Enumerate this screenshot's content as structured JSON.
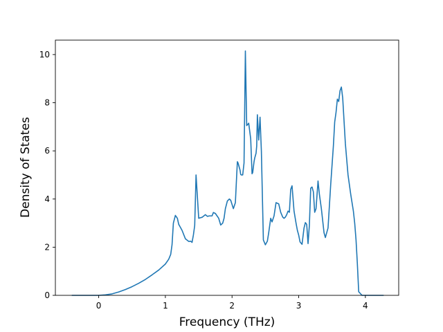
{
  "chart_data": {
    "type": "line",
    "title": "",
    "xlabel": "Frequency (THz)",
    "ylabel": "Density of States",
    "xlim": [
      -0.65,
      4.5
    ],
    "ylim": [
      0,
      10.6
    ],
    "x_ticks": [
      0,
      1,
      2,
      3,
      4
    ],
    "y_ticks": [
      0,
      2,
      4,
      6,
      8,
      10
    ],
    "grid": false,
    "legend": "none",
    "series": [
      {
        "color": "#1f77b4",
        "x": [
          -0.4,
          -0.2,
          0.0,
          0.1,
          0.2,
          0.3,
          0.4,
          0.5,
          0.6,
          0.7,
          0.8,
          0.9,
          1.0,
          1.05,
          1.08,
          1.1,
          1.12,
          1.15,
          1.18,
          1.2,
          1.22,
          1.25,
          1.3,
          1.35,
          1.38,
          1.4,
          1.42,
          1.44,
          1.46,
          1.5,
          1.52,
          1.55,
          1.6,
          1.63,
          1.66,
          1.7,
          1.72,
          1.75,
          1.8,
          1.83,
          1.86,
          1.88,
          1.9,
          1.93,
          1.96,
          1.98,
          2.02,
          2.05,
          2.07,
          2.08,
          2.09,
          2.1,
          2.12,
          2.13,
          2.14,
          2.16,
          2.18,
          2.2,
          2.22,
          2.25,
          2.28,
          2.3,
          2.31,
          2.33,
          2.34,
          2.36,
          2.37,
          2.38,
          2.4,
          2.42,
          2.44,
          2.47,
          2.5,
          2.53,
          2.55,
          2.58,
          2.6,
          2.63,
          2.66,
          2.7,
          2.73,
          2.76,
          2.78,
          2.8,
          2.82,
          2.84,
          2.86,
          2.88,
          2.9,
          2.93,
          2.96,
          2.98,
          3.0,
          3.02,
          3.05,
          3.08,
          3.1,
          3.12,
          3.14,
          3.16,
          3.18,
          3.2,
          3.22,
          3.24,
          3.26,
          3.29,
          3.31,
          3.34,
          3.38,
          3.4,
          3.44,
          3.48,
          3.52,
          3.54,
          3.56,
          3.58,
          3.6,
          3.62,
          3.64,
          3.66,
          3.7,
          3.74,
          3.78,
          3.82,
          3.84,
          3.86,
          3.88,
          3.9,
          3.95,
          4.0,
          4.1,
          4.2,
          4.27
        ],
        "y": [
          0,
          0,
          0,
          0.02,
          0.06,
          0.14,
          0.24,
          0.36,
          0.5,
          0.66,
          0.85,
          1.05,
          1.3,
          1.5,
          1.7,
          2.1,
          3.0,
          3.32,
          3.2,
          2.95,
          2.85,
          2.7,
          2.35,
          2.24,
          2.25,
          2.2,
          2.5,
          2.9,
          5.0,
          3.2,
          3.22,
          3.24,
          3.35,
          3.28,
          3.3,
          3.3,
          3.44,
          3.4,
          3.2,
          2.92,
          3.0,
          3.2,
          3.6,
          3.92,
          4.0,
          3.95,
          3.6,
          3.85,
          5.0,
          5.55,
          5.5,
          5.4,
          5.2,
          5.02,
          5.0,
          5.0,
          5.5,
          10.15,
          7.05,
          7.15,
          6.5,
          5.05,
          5.1,
          5.55,
          5.7,
          5.9,
          6.2,
          7.5,
          6.45,
          7.4,
          6.0,
          2.3,
          2.1,
          2.25,
          2.6,
          3.2,
          3.05,
          3.3,
          3.85,
          3.8,
          3.45,
          3.25,
          3.2,
          3.25,
          3.35,
          3.5,
          3.45,
          4.4,
          4.55,
          3.5,
          3.0,
          2.7,
          2.5,
          2.22,
          2.12,
          2.8,
          3.02,
          2.95,
          2.15,
          2.9,
          4.45,
          4.5,
          4.3,
          3.45,
          3.6,
          4.75,
          4.2,
          3.6,
          2.6,
          2.4,
          2.8,
          4.6,
          6.2,
          7.2,
          7.6,
          8.15,
          8.05,
          8.5,
          8.65,
          8.2,
          6.3,
          5.0,
          4.2,
          3.5,
          3.0,
          2.3,
          1.3,
          0.15,
          0,
          0,
          0,
          0,
          0
        ]
      }
    ]
  }
}
